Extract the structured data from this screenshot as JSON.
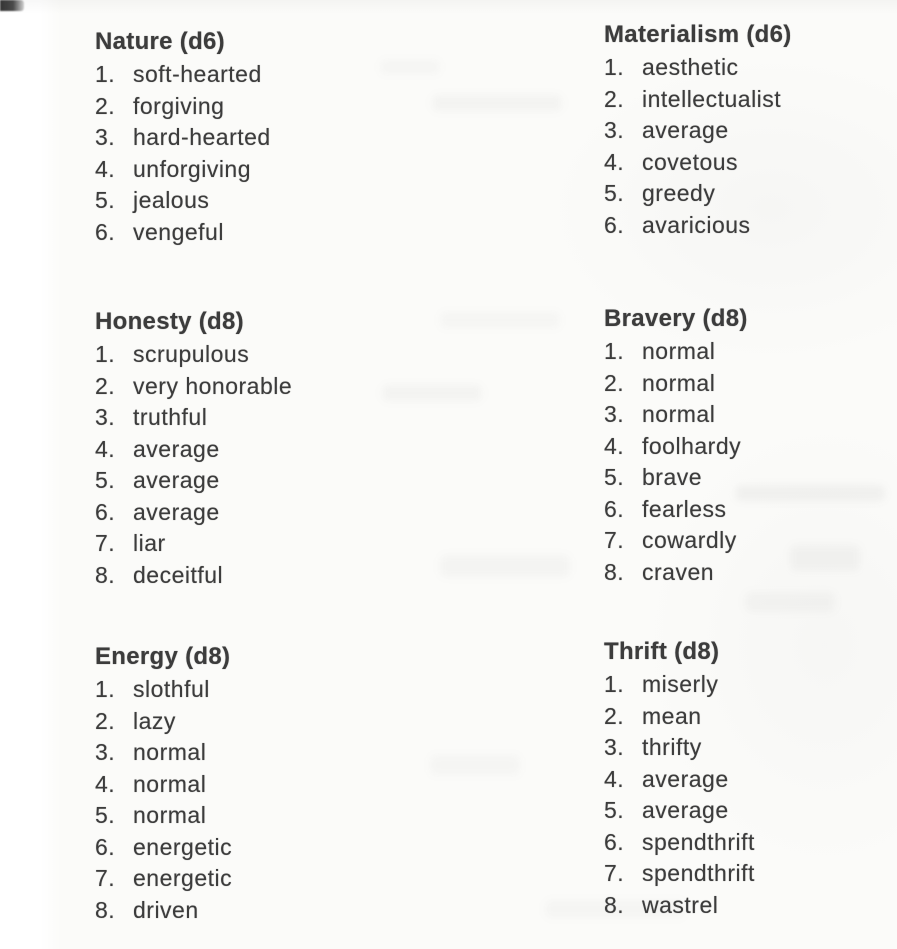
{
  "colors": {
    "paper": "#fbfbf9",
    "ink": "#3c3c3c",
    "corner_mark": "#3f3f3f"
  },
  "sections": {
    "nature": {
      "heading": "Nature (d6)",
      "items": [
        {
          "num": "1.",
          "label": "soft-hearted"
        },
        {
          "num": "2.",
          "label": "forgiving"
        },
        {
          "num": "3.",
          "label": "hard-hearted"
        },
        {
          "num": "4.",
          "label": "unforgiving"
        },
        {
          "num": "5.",
          "label": "jealous"
        },
        {
          "num": "6.",
          "label": "vengeful"
        }
      ]
    },
    "materialism": {
      "heading": "Materialism (d6)",
      "items": [
        {
          "num": "1.",
          "label": "aesthetic"
        },
        {
          "num": "2.",
          "label": "intellectualist"
        },
        {
          "num": "3.",
          "label": "average"
        },
        {
          "num": "4.",
          "label": "covetous"
        },
        {
          "num": "5.",
          "label": "greedy"
        },
        {
          "num": "6.",
          "label": "avaricious"
        }
      ]
    },
    "honesty": {
      "heading": "Honesty (d8)",
      "items": [
        {
          "num": "1.",
          "label": "scrupulous"
        },
        {
          "num": "2.",
          "label": "very honorable"
        },
        {
          "num": "3.",
          "label": "truthful"
        },
        {
          "num": "4.",
          "label": "average"
        },
        {
          "num": "5.",
          "label": "average"
        },
        {
          "num": "6.",
          "label": "average"
        },
        {
          "num": "7.",
          "label": "liar"
        },
        {
          "num": "8.",
          "label": "deceitful"
        }
      ]
    },
    "bravery": {
      "heading": "Bravery (d8)",
      "items": [
        {
          "num": "1.",
          "label": "normal"
        },
        {
          "num": "2.",
          "label": "normal"
        },
        {
          "num": "3.",
          "label": "normal"
        },
        {
          "num": "4.",
          "label": "foolhardy"
        },
        {
          "num": "5.",
          "label": "brave"
        },
        {
          "num": "6.",
          "label": "fearless"
        },
        {
          "num": "7.",
          "label": "cowardly"
        },
        {
          "num": "8.",
          "label": "craven"
        }
      ]
    },
    "energy": {
      "heading": "Energy (d8)",
      "items": [
        {
          "num": "1.",
          "label": "slothful"
        },
        {
          "num": "2.",
          "label": "lazy"
        },
        {
          "num": "3.",
          "label": "normal"
        },
        {
          "num": "4.",
          "label": "normal"
        },
        {
          "num": "5.",
          "label": "normal"
        },
        {
          "num": "6.",
          "label": "energetic"
        },
        {
          "num": "7.",
          "label": "energetic"
        },
        {
          "num": "8.",
          "label": "driven"
        }
      ]
    },
    "thrift": {
      "heading": "Thrift (d8)",
      "items": [
        {
          "num": "1.",
          "label": "miserly"
        },
        {
          "num": "2.",
          "label": "mean"
        },
        {
          "num": "3.",
          "label": "thrifty"
        },
        {
          "num": "4.",
          "label": "average"
        },
        {
          "num": "5.",
          "label": "average"
        },
        {
          "num": "6.",
          "label": "spendthrift"
        },
        {
          "num": "7.",
          "label": "spendthrift"
        },
        {
          "num": "8.",
          "label": "wastrel"
        }
      ]
    }
  }
}
